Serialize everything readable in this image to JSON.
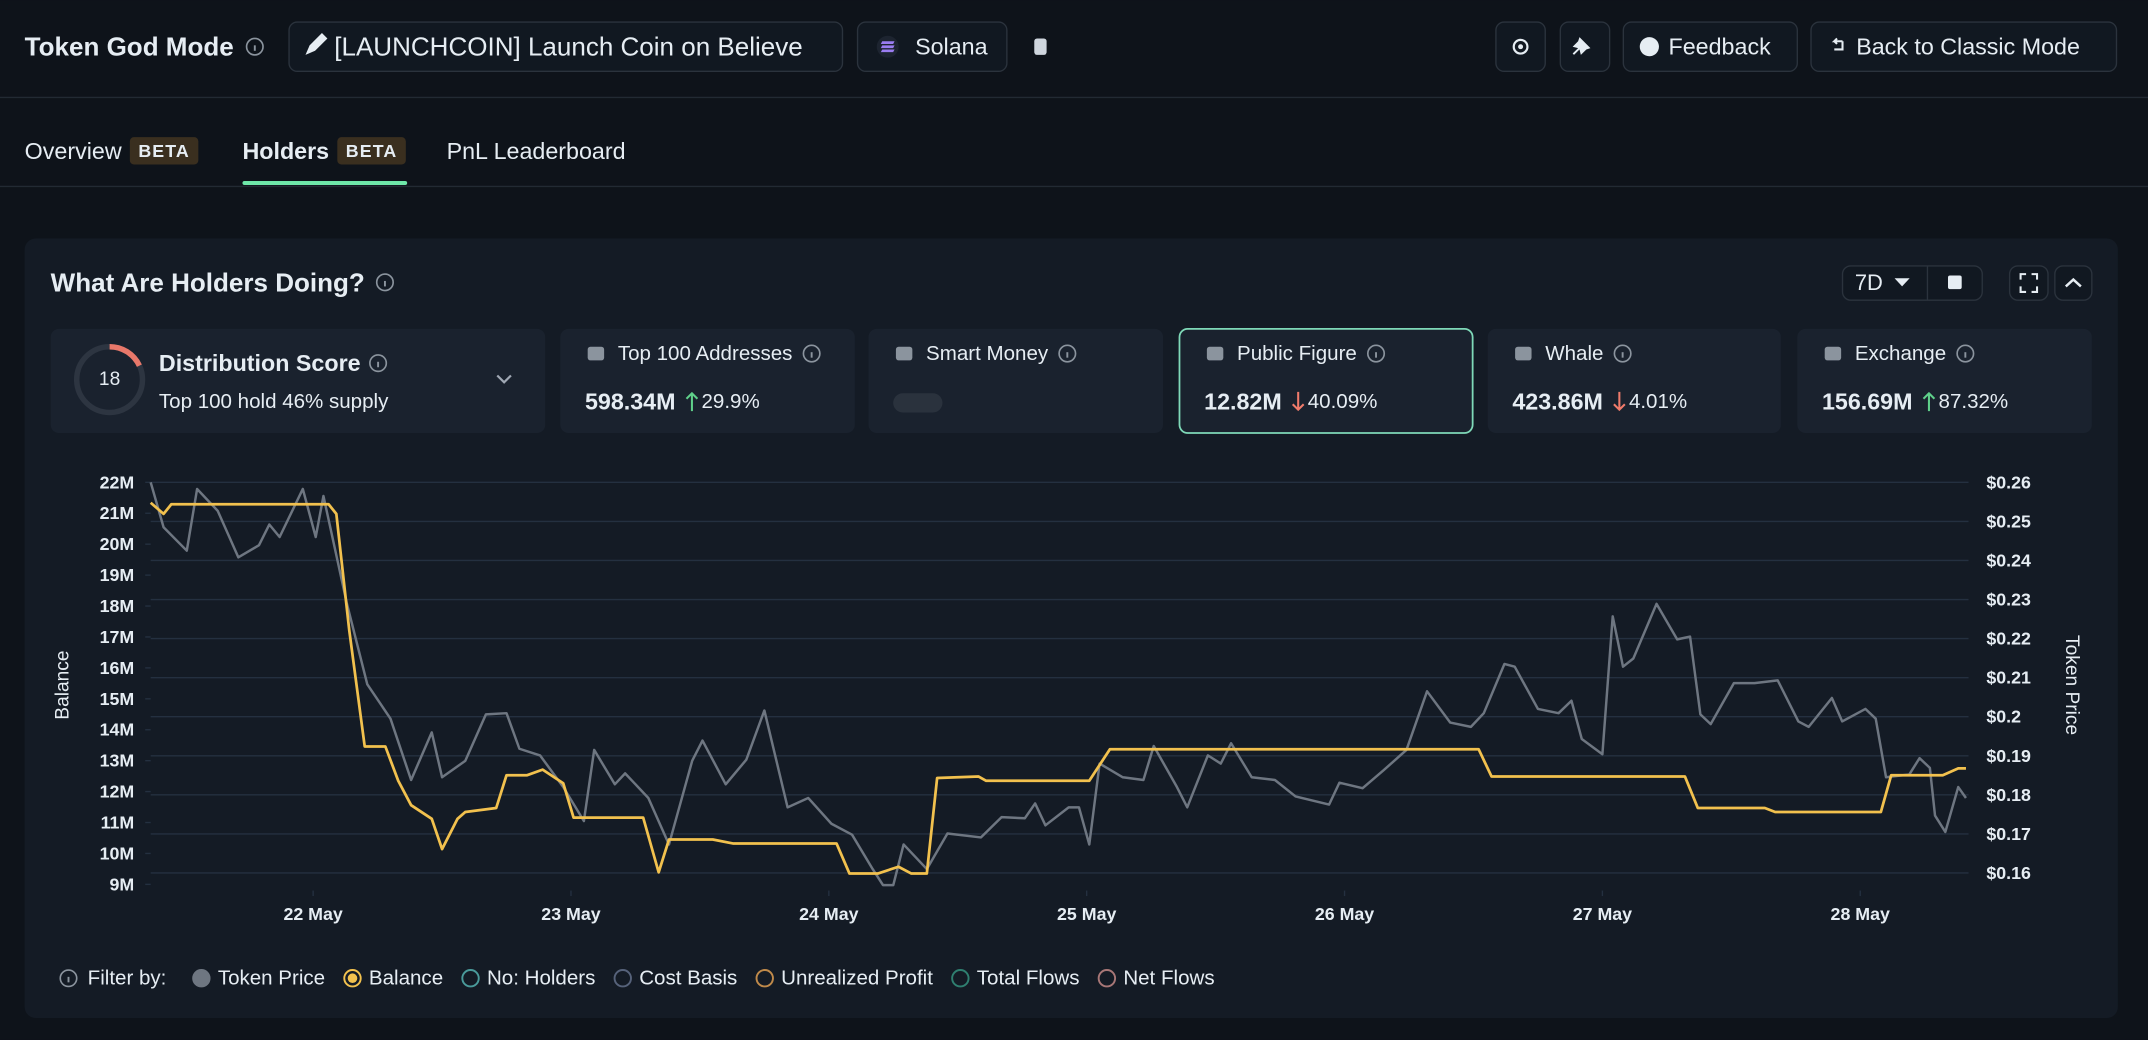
{
  "header": {
    "title": "Token God Mode",
    "token": "[LAUNCHCOIN] Launch Coin on Believe",
    "chain": "Solana",
    "feedback": "Feedback",
    "classic": "Back to Classic Mode"
  },
  "tabs": [
    {
      "label": "Overview",
      "badge": "BETA"
    },
    {
      "label": "Holders",
      "badge": "BETA",
      "selected": true
    },
    {
      "label": "PnL Leaderboard"
    }
  ],
  "panel": {
    "title": "What Are Holders Doing?",
    "period": "7D"
  },
  "distribution": {
    "score": 18,
    "label": "Distribution Score",
    "subtitle": "Top 100 hold 46% supply"
  },
  "cards": [
    {
      "label": "Top 100 Addresses",
      "value": "598.34M",
      "change": "29.9%",
      "direction": "up"
    },
    {
      "label": "Smart Money"
    },
    {
      "label": "Public Figure",
      "value": "12.82M",
      "change": "40.09%",
      "direction": "down",
      "selected": true
    },
    {
      "label": "Whale",
      "value": "423.86M",
      "change": "4.01%",
      "direction": "down"
    },
    {
      "label": "Exchange",
      "value": "156.69M",
      "change": "87.32%",
      "direction": "up"
    }
  ],
  "filter": {
    "label": "Filter by:"
  },
  "chart_data": {
    "type": "line",
    "ylabel": "Balance",
    "y2label": "Token Price",
    "grid": true,
    "xlim": [
      21.37,
      28.42
    ],
    "xticks": [
      {
        "value": 22,
        "label": "22 May"
      },
      {
        "value": 23,
        "label": "23 May"
      },
      {
        "value": 24,
        "label": "24 May"
      },
      {
        "value": 25,
        "label": "25 May"
      },
      {
        "value": 26,
        "label": "26 May"
      },
      {
        "value": 27,
        "label": "27 May"
      },
      {
        "value": 28,
        "label": "28 May"
      }
    ],
    "ylim": [
      8800000,
      22000000
    ],
    "yticks": [
      {
        "value": 22000000,
        "label": "22M"
      },
      {
        "value": 21000000,
        "label": "21M"
      },
      {
        "value": 20000000,
        "label": "20M"
      },
      {
        "value": 19000000,
        "label": "19M"
      },
      {
        "value": 18000000,
        "label": "18M"
      },
      {
        "value": 17000000,
        "label": "17M"
      },
      {
        "value": 16000000,
        "label": "16M"
      },
      {
        "value": 15000000,
        "label": "15M"
      },
      {
        "value": 14000000,
        "label": "14M"
      },
      {
        "value": 13000000,
        "label": "13M"
      },
      {
        "value": 12000000,
        "label": "12M"
      },
      {
        "value": 11000000,
        "label": "11M"
      },
      {
        "value": 10000000,
        "label": "10M"
      },
      {
        "value": 9000000,
        "label": "9M"
      }
    ],
    "y2lim": [
      0.1555,
      0.26
    ],
    "y2ticks": [
      {
        "value": 0.26,
        "label": "$0.26"
      },
      {
        "value": 0.25,
        "label": "$0.25"
      },
      {
        "value": 0.24,
        "label": "$0.24"
      },
      {
        "value": 0.23,
        "label": "$0.23"
      },
      {
        "value": 0.22,
        "label": "$0.22"
      },
      {
        "value": 0.21,
        "label": "$0.21"
      },
      {
        "value": 0.2,
        "label": "$0.2"
      },
      {
        "value": 0.19,
        "label": "$0.19"
      },
      {
        "value": 0.18,
        "label": "$0.18"
      },
      {
        "value": 0.17,
        "label": "$0.17"
      },
      {
        "value": 0.16,
        "label": "$0.16"
      }
    ],
    "series": [
      {
        "name": "Token Price",
        "color": "#6e7681",
        "axis": "y2",
        "x": [
          21.37,
          21.42,
          21.51,
          21.55,
          21.63,
          21.71,
          21.79,
          21.83,
          21.87,
          21.96,
          22.01,
          22.04,
          22.13,
          22.21,
          22.3,
          22.38,
          22.46,
          22.5,
          22.59,
          22.67,
          22.75,
          22.8,
          22.88,
          22.97,
          23.05,
          23.09,
          23.17,
          23.21,
          23.3,
          23.38,
          23.47,
          23.51,
          23.6,
          23.68,
          23.75,
          23.84,
          23.92,
          24.01,
          24.09,
          24.17,
          24.21,
          24.25,
          24.29,
          24.38,
          24.46,
          24.59,
          24.67,
          24.76,
          24.8,
          24.84,
          24.93,
          24.97,
          25.01,
          25.05,
          25.14,
          25.22,
          25.26,
          25.35,
          25.39,
          25.47,
          25.52,
          25.56,
          25.64,
          25.73,
          25.81,
          25.94,
          25.98,
          26.07,
          26.15,
          26.24,
          26.32,
          26.41,
          26.49,
          26.54,
          26.62,
          26.66,
          26.75,
          26.83,
          26.88,
          26.92,
          27.0,
          27.04,
          27.08,
          27.12,
          27.21,
          27.29,
          27.34,
          27.38,
          27.42,
          27.51,
          27.59,
          27.68,
          27.76,
          27.8,
          27.89,
          27.93,
          28.02,
          28.06,
          28.1,
          28.19,
          28.23,
          28.27,
          28.29,
          28.33,
          28.38,
          28.41
        ],
        "values": [
          0.26,
          0.2485,
          0.2425,
          0.2583,
          0.2527,
          0.2408,
          0.2439,
          0.2492,
          0.246,
          0.2583,
          0.246,
          0.2565,
          0.2292,
          0.2083,
          0.1995,
          0.1838,
          0.196,
          0.1845,
          0.1887,
          0.2006,
          0.2009,
          0.1918,
          0.1901,
          0.182,
          0.1733,
          0.1915,
          0.1827,
          0.1855,
          0.1792,
          0.1673,
          0.1887,
          0.1939,
          0.1827,
          0.189,
          0.2016,
          0.1768,
          0.1792,
          0.1726,
          0.1698,
          0.161,
          0.1569,
          0.1569,
          0.1673,
          0.161,
          0.1701,
          0.1691,
          0.1743,
          0.174,
          0.1778,
          0.1722,
          0.1768,
          0.1768,
          0.1673,
          0.188,
          0.1845,
          0.1838,
          0.1925,
          0.182,
          0.1768,
          0.1901,
          0.188,
          0.1932,
          0.1845,
          0.1838,
          0.1796,
          0.1775,
          0.1831,
          0.1817,
          0.1862,
          0.1915,
          0.2065,
          0.1985,
          0.1974,
          0.2009,
          0.2135,
          0.2128,
          0.202,
          0.2009,
          0.2041,
          0.1943,
          0.1904,
          0.2257,
          0.2128,
          0.2149,
          0.2289,
          0.2198,
          0.2205,
          0.2006,
          0.1981,
          0.2086,
          0.2086,
          0.2093,
          0.1988,
          0.1974,
          0.2048,
          0.1988,
          0.202,
          0.1995,
          0.1845,
          0.1852,
          0.1894,
          0.1869,
          0.1747,
          0.1705,
          0.182,
          0.1792
        ]
      },
      {
        "name": "Balance",
        "color": "#f2c14e",
        "x": [
          21.37,
          21.42,
          21.45,
          22.06,
          22.09,
          22.14,
          22.2,
          22.28,
          22.33,
          22.38,
          22.46,
          22.5,
          22.56,
          22.59,
          22.71,
          22.75,
          22.83,
          22.89,
          22.97,
          23.01,
          23.28,
          23.34,
          23.38,
          23.55,
          23.63,
          24.03,
          24.08,
          24.19,
          24.27,
          24.32,
          24.38,
          24.42,
          24.58,
          24.61,
          25.01,
          25.09,
          26.52,
          26.57,
          27.32,
          27.37,
          27.63,
          27.67,
          28.08,
          28.12,
          28.32,
          28.38,
          28.41
        ],
        "values": [
          21340000,
          20980000,
          21290000,
          21290000,
          20980000,
          17220000,
          13460000,
          13460000,
          12350000,
          11560000,
          11120000,
          10140000,
          11120000,
          11340000,
          11470000,
          12530000,
          12530000,
          12710000,
          12270000,
          11160000,
          11160000,
          9390000,
          10450000,
          10450000,
          10320000,
          10320000,
          9350000,
          9350000,
          9570000,
          9350000,
          9350000,
          12440000,
          12490000,
          12350000,
          12350000,
          13370000,
          13370000,
          12490000,
          12490000,
          11470000,
          11470000,
          11340000,
          11340000,
          12530000,
          12530000,
          12750000,
          12750000
        ]
      }
    ],
    "other_series": [
      {
        "name": "No: Holders",
        "color": "#4a9a9a"
      },
      {
        "name": "Cost Basis",
        "color": "#56627a"
      },
      {
        "name": "Unrealized Profit",
        "color": "#c08a4a"
      },
      {
        "name": "Total Flows",
        "color": "#2f7f70"
      },
      {
        "name": "Net Flows",
        "color": "#a87777"
      }
    ]
  }
}
